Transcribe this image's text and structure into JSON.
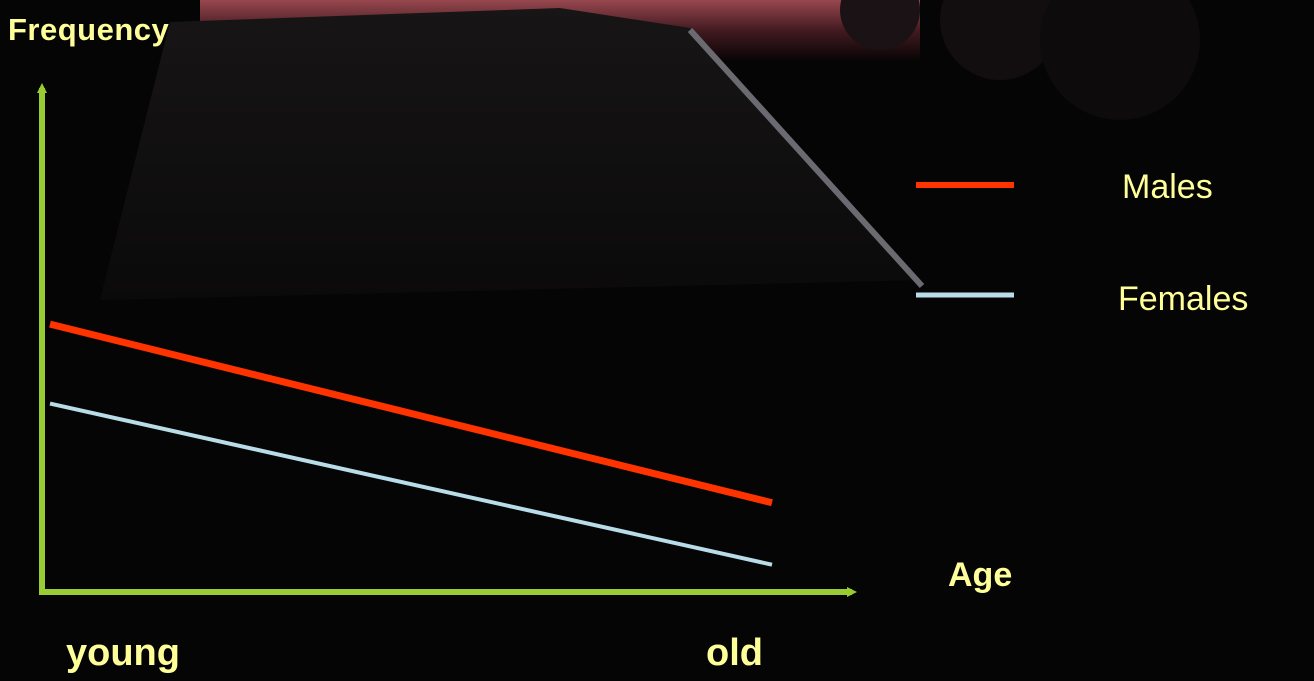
{
  "chart_data": {
    "type": "line",
    "x": [
      "young",
      "old"
    ],
    "xlabel": "Age",
    "ylabel": "Frequency",
    "ylim": [
      0,
      10
    ],
    "grid": false,
    "legend_position": "right",
    "series": [
      {
        "name": "Males",
        "values": [
          5.4,
          1.8
        ],
        "color": "#ff3300"
      },
      {
        "name": "Females",
        "values": [
          3.8,
          0.55
        ],
        "color": "#b8dde8"
      }
    ],
    "axis_color": "#99cc33",
    "text_color": "#ffff99"
  }
}
